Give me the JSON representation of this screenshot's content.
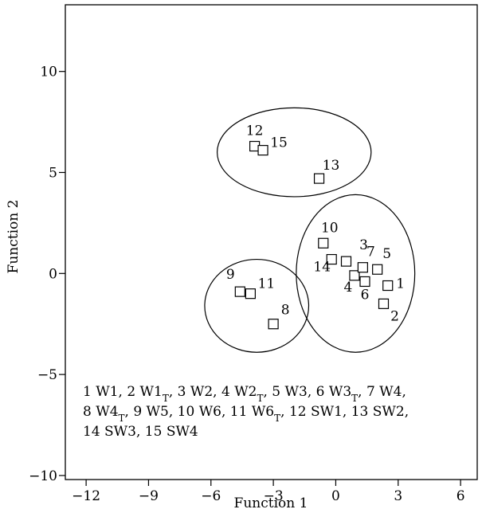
{
  "chart_data": {
    "type": "scatter",
    "title": "",
    "xlabel": "Function 1",
    "ylabel": "Function 2",
    "xlim": [
      -13.0,
      6.8
    ],
    "ylim": [
      -10.2,
      13.3
    ],
    "xticks": [
      -12,
      -9,
      -6,
      -3,
      0,
      3,
      6
    ],
    "yticks": [
      -10,
      -5,
      0,
      5,
      10
    ],
    "xtick_labels": [
      "−12",
      "−9",
      "−6",
      "−3",
      "0",
      "3",
      "6"
    ],
    "ytick_labels": [
      "−10",
      "−5",
      "0",
      "5",
      "10"
    ],
    "grid": false,
    "marker": "open-square",
    "points": [
      {
        "label": "1",
        "x": 2.5,
        "y": -0.6
      },
      {
        "label": "2",
        "x": 2.3,
        "y": -1.5
      },
      {
        "label": "3",
        "x": 0.5,
        "y": 0.6
      },
      {
        "label": "4",
        "x": 0.9,
        "y": -0.1
      },
      {
        "label": "5",
        "x": 2.0,
        "y": 0.2
      },
      {
        "label": "6",
        "x": 1.4,
        "y": -0.4
      },
      {
        "label": "7",
        "x": 1.3,
        "y": 0.3
      },
      {
        "label": "8",
        "x": -3.0,
        "y": -2.5
      },
      {
        "label": "9",
        "x": -4.6,
        "y": -0.9
      },
      {
        "label": "10",
        "x": -0.6,
        "y": 1.5
      },
      {
        "label": "11",
        "x": -4.1,
        "y": -1.0
      },
      {
        "label": "12",
        "x": -3.9,
        "y": 6.3
      },
      {
        "label": "13",
        "x": -0.8,
        "y": 4.7
      },
      {
        "label": "14",
        "x": -0.2,
        "y": 0.7
      },
      {
        "label": "15",
        "x": -3.5,
        "y": 6.1
      }
    ],
    "groups": [
      {
        "cx": -2.0,
        "cy": 6.0,
        "rx": 3.7,
        "ry": 2.2,
        "members": [
          "12",
          "15",
          "13"
        ]
      },
      {
        "cx": -3.8,
        "cy": -1.6,
        "rx": 2.5,
        "ry": 2.3,
        "members": [
          "9",
          "11",
          "8"
        ]
      },
      {
        "cx": 0.95,
        "cy": 0.0,
        "rx": 2.85,
        "ry": 3.9,
        "members": [
          "1",
          "2",
          "3",
          "4",
          "5",
          "6",
          "7",
          "10",
          "14"
        ]
      }
    ],
    "legend_lines": [
      [
        {
          "t": "1 W1, 2 W1"
        },
        {
          "t": "T",
          "sub": true
        },
        {
          "t": ", 3 W2, 4 W2"
        },
        {
          "t": "T",
          "sub": true
        },
        {
          "t": ", 5 W3, 6 W3"
        },
        {
          "t": "T",
          "sub": true
        },
        {
          "t": ", 7 W4,"
        }
      ],
      [
        {
          "t": "8 W4"
        },
        {
          "t": "T",
          "sub": true
        },
        {
          "t": ", 9 W5, 10 W6, 11 W6"
        },
        {
          "t": "T",
          "sub": true
        },
        {
          "t": ", 12 SW1, 13 SW2,"
        }
      ],
      [
        {
          "t": "14 SW3, 15 SW4"
        }
      ]
    ]
  }
}
